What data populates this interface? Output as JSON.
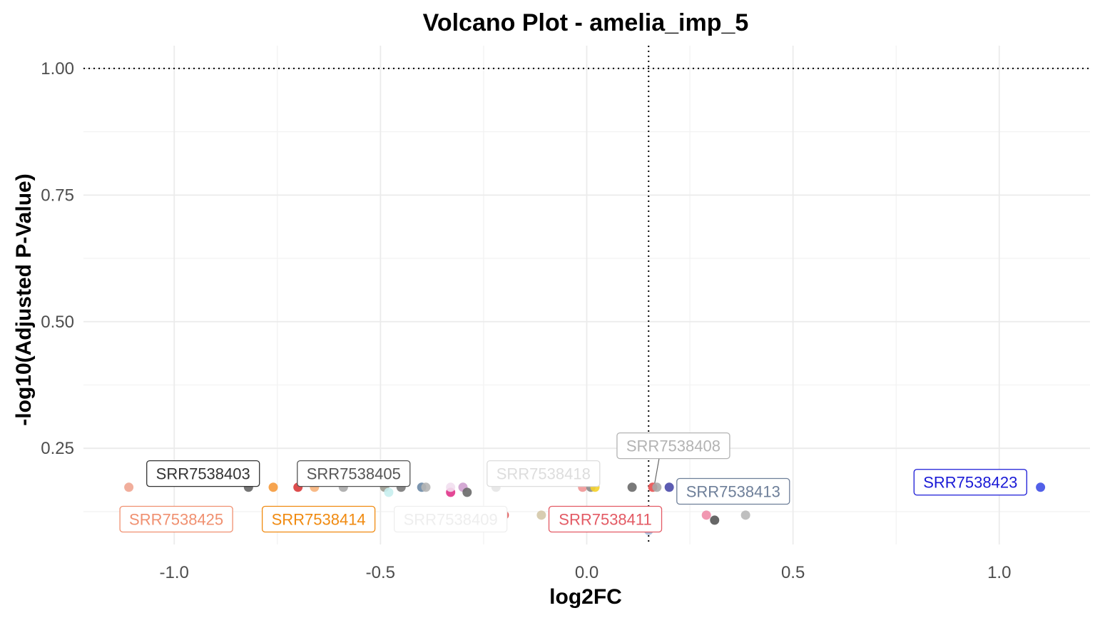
{
  "chart_data": {
    "type": "scatter",
    "title": "Volcano Plot - amelia_imp_5",
    "xlabel": "log2FC",
    "ylabel": "-log10(Adjusted P-Value)",
    "xlim": [
      -1.22,
      1.22
    ],
    "ylim": [
      0.06,
      1.045
    ],
    "x_ticks": [
      -1.0,
      -0.5,
      0.0,
      0.5,
      1.0
    ],
    "x_tick_labels": [
      "-1.0",
      "-0.5",
      "0.0",
      "0.5",
      "1.0"
    ],
    "y_ticks": [
      0.25,
      0.5,
      0.75,
      1.0
    ],
    "y_tick_labels": [
      "0.25",
      "0.50",
      "0.75",
      "1.00"
    ],
    "grid": true,
    "reference_lines": {
      "vertical_x": 0.15,
      "horizontal_y": 1.0,
      "style": "dotted"
    },
    "points": [
      {
        "x": -1.11,
        "y": 0.173,
        "color": "#f0a591"
      },
      {
        "x": -0.82,
        "y": 0.173,
        "color": "#666666"
      },
      {
        "x": -0.76,
        "y": 0.173,
        "color": "#f59a3c"
      },
      {
        "x": -0.7,
        "y": 0.173,
        "color": "#d93a3a"
      },
      {
        "x": -0.66,
        "y": 0.173,
        "color": "#f7b27a"
      },
      {
        "x": -0.59,
        "y": 0.173,
        "color": "#aaaaaa"
      },
      {
        "x": -0.49,
        "y": 0.173,
        "color": "#9b9b90"
      },
      {
        "x": -0.48,
        "y": 0.163,
        "color": "#c8eeee"
      },
      {
        "x": -0.45,
        "y": 0.173,
        "color": "#7a7a7a"
      },
      {
        "x": -0.4,
        "y": 0.173,
        "color": "#6d8aa6"
      },
      {
        "x": -0.39,
        "y": 0.173,
        "color": "#b5b5b5"
      },
      {
        "x": -0.33,
        "y": 0.163,
        "color": "#e0348a"
      },
      {
        "x": -0.33,
        "y": 0.173,
        "color": "#f2dff0"
      },
      {
        "x": -0.3,
        "y": 0.173,
        "color": "#cfa0cf"
      },
      {
        "x": -0.29,
        "y": 0.163,
        "color": "#6a6a6a"
      },
      {
        "x": -0.22,
        "y": 0.173,
        "color": "#e6e6e6"
      },
      {
        "x": -0.2,
        "y": 0.118,
        "color": "#e04a4a"
      },
      {
        "x": -0.11,
        "y": 0.118,
        "color": "#d4c8a8"
      },
      {
        "x": -0.01,
        "y": 0.173,
        "color": "#f09696"
      },
      {
        "x": 0.01,
        "y": 0.173,
        "color": "#888888"
      },
      {
        "x": 0.02,
        "y": 0.173,
        "color": "#f5d22a"
      },
      {
        "x": 0.11,
        "y": 0.173,
        "color": "#6a6a6a"
      },
      {
        "x": 0.16,
        "y": 0.173,
        "color": "#e85050"
      },
      {
        "x": 0.17,
        "y": 0.173,
        "color": "#a8a8a8"
      },
      {
        "x": 0.2,
        "y": 0.173,
        "color": "#4a4aaa"
      },
      {
        "x": 0.15,
        "y": 0.088,
        "color": "#a7b8d6"
      },
      {
        "x": 0.29,
        "y": 0.118,
        "color": "#f08ca8"
      },
      {
        "x": 0.31,
        "y": 0.108,
        "color": "#555555"
      },
      {
        "x": 0.385,
        "y": 0.118,
        "color": "#b8b8b8"
      },
      {
        "x": 0.895,
        "y": 0.173,
        "color": "#4f8fd6"
      },
      {
        "x": 1.1,
        "y": 0.173,
        "color": "#3f4fe6"
      }
    ],
    "labels": [
      {
        "text": "SRR7538403",
        "x": -0.93,
        "y": 0.2,
        "color": "#333333"
      },
      {
        "text": "SRR7538405",
        "x": -0.565,
        "y": 0.2,
        "color": "#555555"
      },
      {
        "text": "SRR7538418",
        "x": -0.105,
        "y": 0.2,
        "color": "#dddddd"
      },
      {
        "text": "SRR7538408",
        "x": 0.21,
        "y": 0.255,
        "color": "#b3b3b3"
      },
      {
        "text": "SRR7538413",
        "x": 0.355,
        "y": 0.165,
        "color": "#6e7f99"
      },
      {
        "text": "SRR7538423",
        "x": 0.93,
        "y": 0.183,
        "color": "#1a1ad6"
      },
      {
        "text": "SRR7538425",
        "x": -0.995,
        "y": 0.11,
        "color": "#f09070"
      },
      {
        "text": "SRR7538414",
        "x": -0.65,
        "y": 0.11,
        "color": "#f08a10"
      },
      {
        "text": "SRR7538409",
        "x": -0.33,
        "y": 0.11,
        "color": "#eeeeee"
      },
      {
        "text": "SRR7538411",
        "x": 0.045,
        "y": 0.11,
        "color": "#e35a64"
      }
    ]
  }
}
